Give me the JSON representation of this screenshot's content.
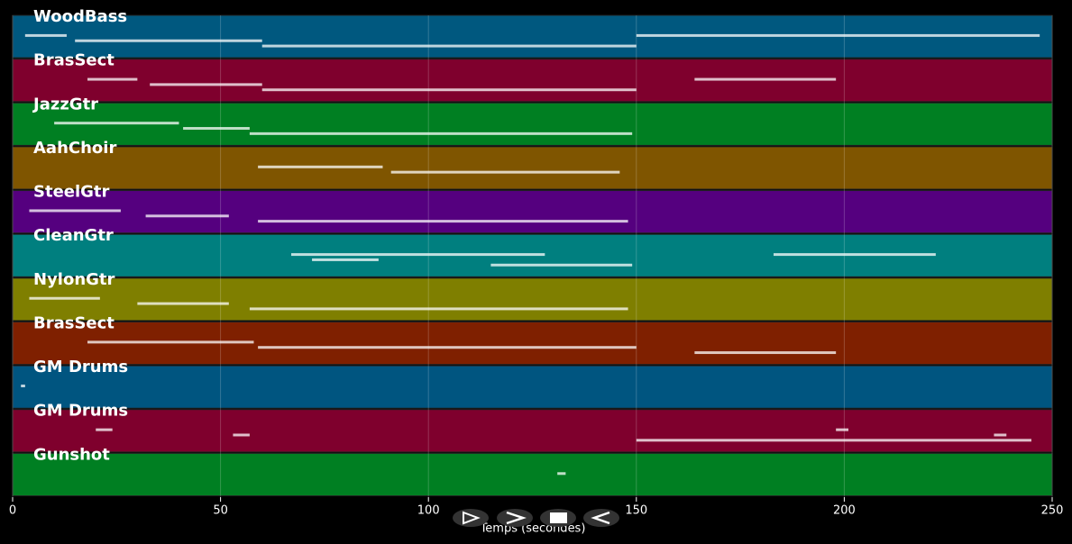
{
  "chart_data": {
    "type": "pianoroll",
    "xlabel": "Temps (secondes)",
    "xlim": [
      0,
      250
    ],
    "xticks": [
      0,
      50,
      100,
      150,
      200,
      250
    ],
    "grid": true,
    "series": [
      {
        "name": "WoodBass",
        "color": "#00587f",
        "starts": [
          3,
          15,
          60,
          150
        ],
        "ends": [
          13,
          60,
          150,
          247
        ]
      },
      {
        "name": "BrasSect",
        "color": "#7f002d",
        "starts": [
          18,
          33,
          60,
          164
        ],
        "ends": [
          30,
          60,
          150,
          198
        ]
      },
      {
        "name": "JazzGtr",
        "color": "#007f22",
        "starts": [
          10,
          41,
          57
        ],
        "ends": [
          40,
          57,
          149
        ]
      },
      {
        "name": "AahChoir",
        "color": "#7f5500",
        "starts": [
          59,
          91
        ],
        "ends": [
          89,
          146
        ]
      },
      {
        "name": "SteelGtr",
        "color": "#55007f",
        "starts": [
          4,
          32,
          59
        ],
        "ends": [
          26,
          52,
          148
        ]
      },
      {
        "name": "CleanGtr",
        "color": "#007f7f",
        "starts": [
          67,
          72,
          115,
          183
        ],
        "ends": [
          128,
          88,
          149,
          222
        ]
      },
      {
        "name": "NylonGtr",
        "color": "#7f7f00",
        "starts": [
          4,
          30,
          57
        ],
        "ends": [
          21,
          52,
          148
        ]
      },
      {
        "name": "BrasSect",
        "color": "#7f2000",
        "starts": [
          18,
          59,
          164
        ],
        "ends": [
          58,
          150,
          198
        ]
      },
      {
        "name": "GM Drums",
        "color": "#005580",
        "starts": [
          2
        ],
        "ends": [
          3
        ]
      },
      {
        "name": "GM Drums",
        "color": "#7f002d",
        "starts": [
          20,
          53,
          150,
          198,
          236
        ],
        "ends": [
          24,
          57,
          245,
          201,
          239
        ]
      },
      {
        "name": "Gunshot",
        "color": "#007f22",
        "starts": [
          131
        ],
        "ends": [
          133
        ]
      }
    ]
  }
}
